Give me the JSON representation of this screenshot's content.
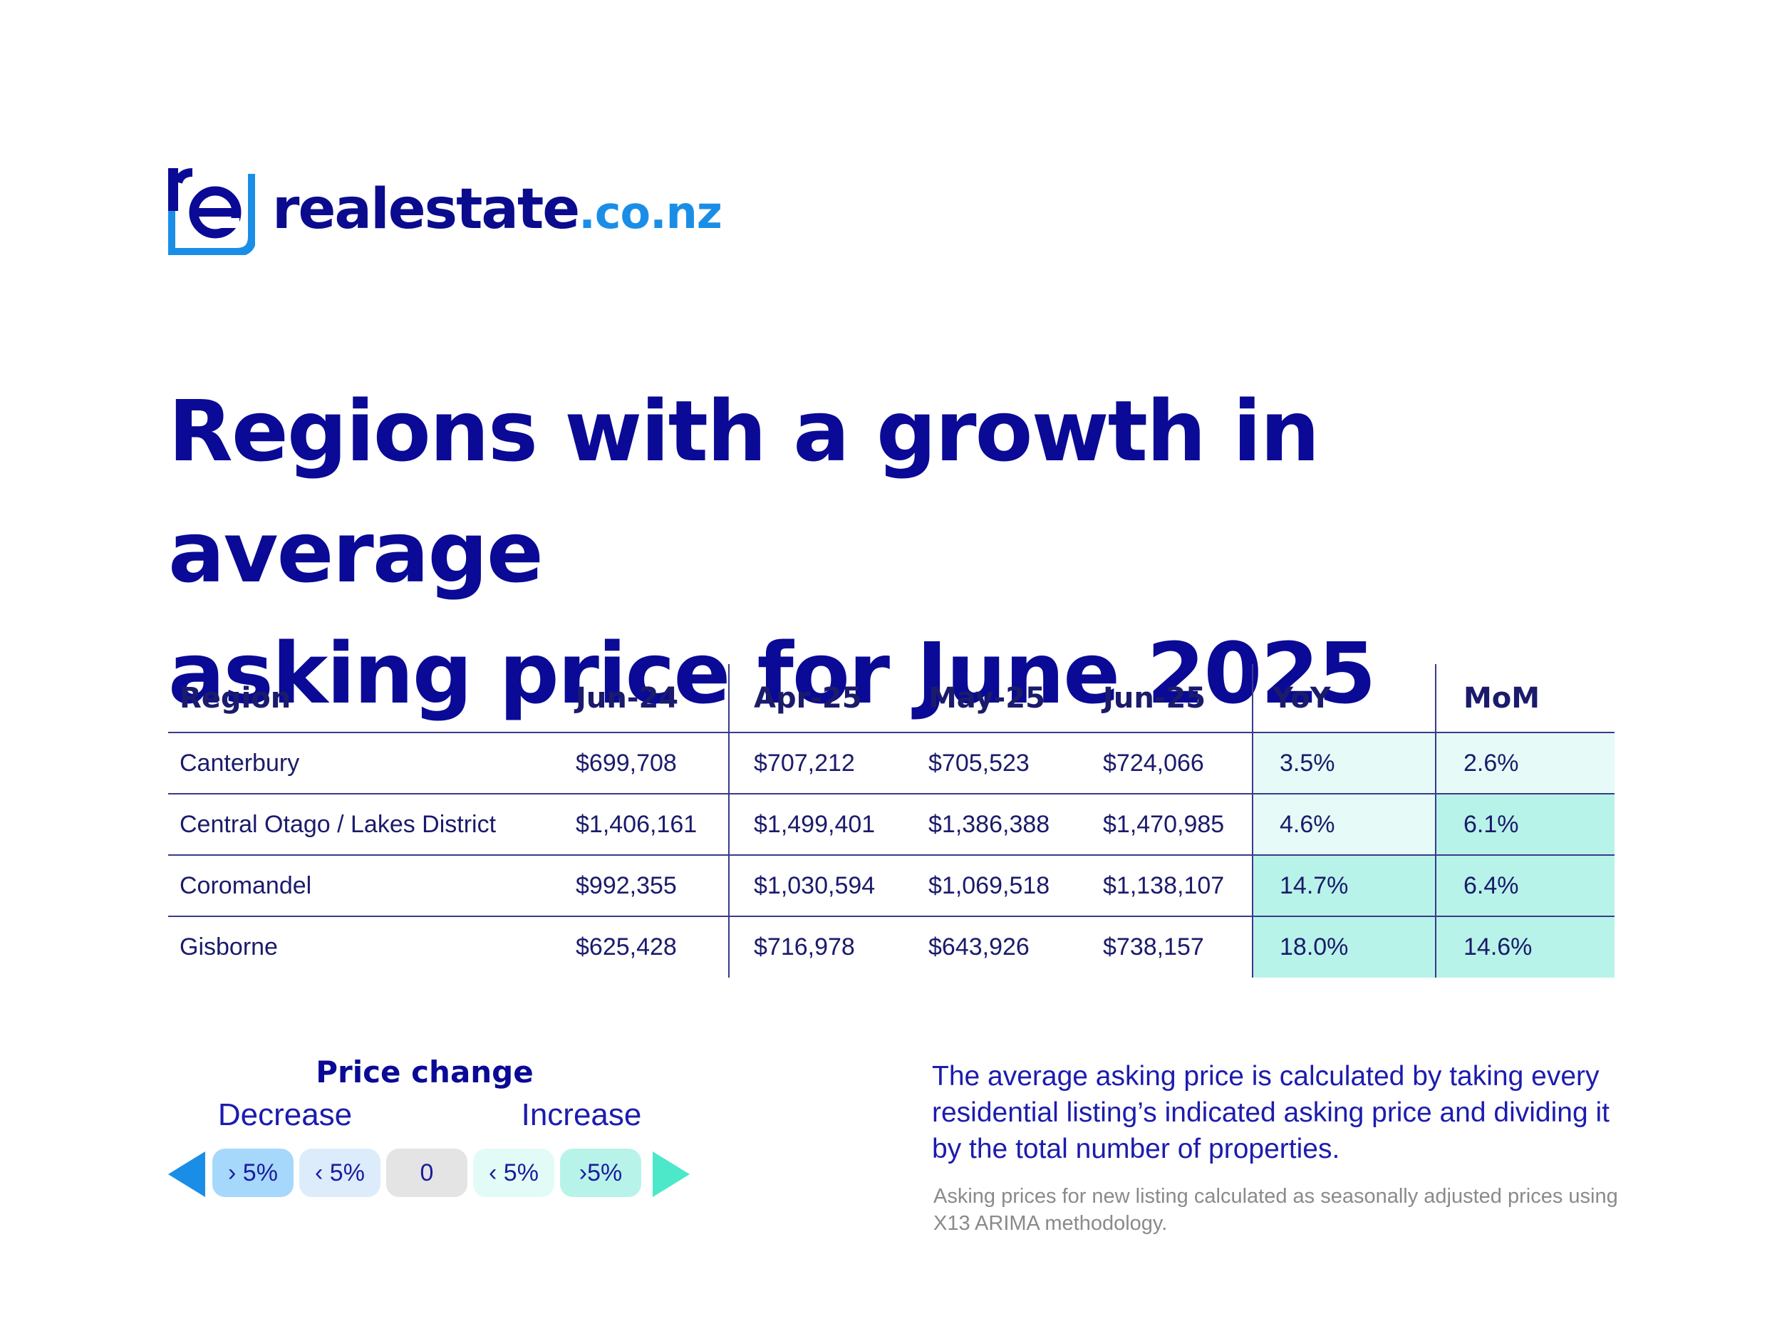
{
  "brand": {
    "name": "realestate",
    "tld": ".co.nz",
    "colors": {
      "navy": "#0a0a96",
      "blue": "#1a8ee6",
      "teal": "#4de8c9"
    }
  },
  "headline": {
    "line1": "Regions with a growth in average",
    "line2": "asking price for June 2025"
  },
  "table": {
    "headers": [
      "Region",
      "Jun-24",
      "Apr-25",
      "May-25",
      "Jun-25",
      "YoY",
      "MoM"
    ],
    "rows": [
      {
        "region": "Canterbury",
        "jun24": "$699,708",
        "apr25": "$707,212",
        "may25": "$705,523",
        "jun25": "$724,066",
        "yoy": "3.5%",
        "mom": "2.6%"
      },
      {
        "region": "Central Otago / Lakes District",
        "jun24": "$1,406,161",
        "apr25": "$1,499,401",
        "may25": "$1,386,388",
        "jun25": "$1,470,985",
        "yoy": "4.6%",
        "mom": "6.1%"
      },
      {
        "region": "Coromandel",
        "jun24": "$992,355",
        "apr25": "$1,030,594",
        "may25": "$1,069,518",
        "jun25": "$1,138,107",
        "yoy": "14.7%",
        "mom": "6.4%"
      },
      {
        "region": "Gisborne",
        "jun24": "$625,428",
        "apr25": "$716,978",
        "may25": "$643,926",
        "jun25": "$738,157",
        "yoy": "18.0%",
        "mom": "14.6%"
      }
    ],
    "shade_colors": {
      "light": "#e6fbf7",
      "mid": "#b8f3e9"
    }
  },
  "legend": {
    "title": "Price change",
    "decrease": "Decrease",
    "increase": "Increase",
    "pills": [
      {
        "label": "› 5%",
        "color": "#a6d8fb"
      },
      {
        "label": "‹ 5%",
        "color": "#dcecfb"
      },
      {
        "label": "0",
        "color": "#e4e4e4"
      },
      {
        "label": "‹ 5%",
        "color": "#e3fbf6"
      },
      {
        "label": "›5%",
        "color": "#b8f3e9"
      }
    ]
  },
  "notes": {
    "main": "The average asking price is calculated by taking every residential listing’s indicated asking price and dividing it by the total number of properties.",
    "small": "Asking prices for new listing calculated as seasonally adjusted prices using X13 ARIMA methodology."
  }
}
